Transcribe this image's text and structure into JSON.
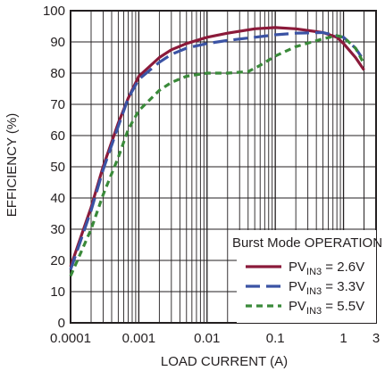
{
  "chart_data": {
    "type": "line",
    "title": "",
    "xlabel": "LOAD CURRENT (A)",
    "ylabel": "EFFICIENCY (%)",
    "x_scale": "log",
    "xlim": [
      0.0001,
      3
    ],
    "ylim": [
      0,
      100
    ],
    "x_ticks": [
      0.0001,
      0.001,
      0.01,
      0.1,
      1,
      3
    ],
    "x_tick_labels": [
      "0.0001",
      "0.001",
      "0.01",
      "0.1",
      "1",
      "3"
    ],
    "y_ticks": [
      0,
      10,
      20,
      30,
      40,
      50,
      60,
      70,
      80,
      90,
      100
    ],
    "y_tick_labels": [
      "0",
      "10",
      "20",
      "30",
      "40",
      "50",
      "60",
      "70",
      "80",
      "90",
      "100"
    ],
    "grid": true,
    "legend": {
      "title": "Burst Mode OPERATION",
      "placement": "bottom-right"
    },
    "series": [
      {
        "name": "PVIN3 = 2.6V",
        "label_main": "PV",
        "label_sub": "IN3",
        "label_tail": " = 2.6V",
        "color": "#8b1a3a",
        "dash": "solid",
        "points": [
          [
            0.0001,
            18
          ],
          [
            0.0002,
            37
          ],
          [
            0.0003,
            50
          ],
          [
            0.0005,
            64
          ],
          [
            0.0007,
            72
          ],
          [
            0.001,
            79
          ],
          [
            0.002,
            85
          ],
          [
            0.003,
            87.5
          ],
          [
            0.005,
            89.5
          ],
          [
            0.01,
            91.5
          ],
          [
            0.02,
            92.8
          ],
          [
            0.05,
            94.2
          ],
          [
            0.1,
            94.6
          ],
          [
            0.2,
            94.2
          ],
          [
            0.5,
            93
          ],
          [
            0.8,
            91.5
          ],
          [
            1.0,
            89.5
          ],
          [
            1.5,
            85
          ],
          [
            2.0,
            81
          ]
        ]
      },
      {
        "name": "PVIN3 = 3.3V",
        "label_main": "PV",
        "label_sub": "IN3",
        "label_tail": " = 3.3V",
        "color": "#3b53a4",
        "dash": "long-dash",
        "points": [
          [
            0.0001,
            17
          ],
          [
            0.0002,
            36
          ],
          [
            0.0003,
            49
          ],
          [
            0.0005,
            63
          ],
          [
            0.0007,
            72
          ],
          [
            0.001,
            78
          ],
          [
            0.002,
            83.5
          ],
          [
            0.003,
            86
          ],
          [
            0.005,
            88
          ],
          [
            0.01,
            89.5
          ],
          [
            0.02,
            90.5
          ],
          [
            0.05,
            91.5
          ],
          [
            0.1,
            92.3
          ],
          [
            0.2,
            92.8
          ],
          [
            0.5,
            93
          ],
          [
            1.0,
            91.5
          ],
          [
            1.5,
            88
          ],
          [
            2.0,
            84
          ]
        ]
      },
      {
        "name": "PVIN3 = 5.5V",
        "label_main": "PV",
        "label_sub": "IN3",
        "label_tail": " = 5.5V",
        "color": "#3a8a3a",
        "dash": "short-dash",
        "points": [
          [
            0.0001,
            15
          ],
          [
            0.0002,
            30
          ],
          [
            0.0003,
            41
          ],
          [
            0.0005,
            53
          ],
          [
            0.0007,
            62
          ],
          [
            0.001,
            68
          ],
          [
            0.002,
            74.5
          ],
          [
            0.003,
            77
          ],
          [
            0.005,
            79
          ],
          [
            0.01,
            80
          ],
          [
            0.02,
            80
          ],
          [
            0.04,
            80.5
          ],
          [
            0.06,
            82.5
          ],
          [
            0.1,
            85.5
          ],
          [
            0.2,
            88.5
          ],
          [
            0.5,
            91
          ],
          [
            0.8,
            92
          ],
          [
            1.0,
            91.5
          ],
          [
            1.5,
            88
          ],
          [
            2.0,
            83
          ]
        ]
      }
    ]
  }
}
